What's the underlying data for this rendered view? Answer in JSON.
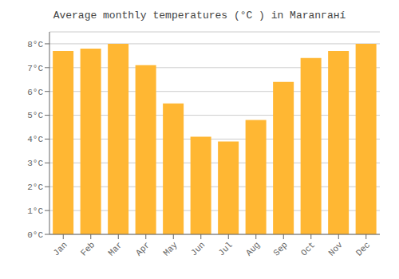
{
  "chart_data": {
    "type": "bar",
    "title": "Average monthly temperatures (°C ) in Maranганí",
    "categories": [
      "Jan",
      "Feb",
      "Mar",
      "Apr",
      "May",
      "Jun",
      "Jul",
      "Aug",
      "Sep",
      "Oct",
      "Nov",
      "Dec"
    ],
    "values": [
      7.7,
      7.8,
      8.0,
      7.1,
      5.5,
      4.1,
      3.9,
      4.8,
      6.4,
      7.4,
      7.7,
      8.0
    ],
    "color": "#FFB733",
    "ylim": [
      0,
      8.5
    ],
    "yticks": [
      {
        "value": 0,
        "label": "0°C"
      },
      {
        "value": 1,
        "label": "1°C"
      },
      {
        "value": 2,
        "label": "2°C"
      },
      {
        "value": 3,
        "label": "3°C"
      },
      {
        "value": 4,
        "label": "4°C"
      },
      {
        "value": 5,
        "label": "5°C"
      },
      {
        "value": 6,
        "label": "6°C"
      },
      {
        "value": 7,
        "label": "7°C"
      },
      {
        "value": 8,
        "label": "8°C"
      }
    ],
    "grid": true
  }
}
